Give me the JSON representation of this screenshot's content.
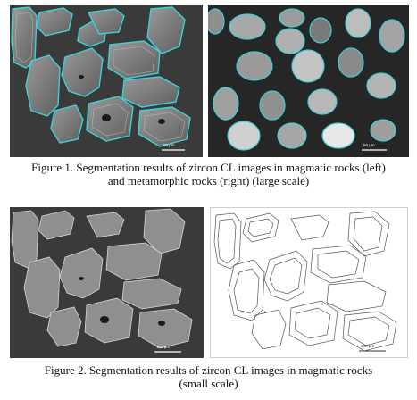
{
  "figure1": {
    "caption_line1": "Figure 1. Segmentation results of zircon CL images in magmatic rocks (left)",
    "caption_line2": "and metamorphic rocks (right) (large scale)",
    "left_scale_label": "50 μm",
    "right_scale_label": "50 μm"
  },
  "figure2": {
    "caption_line1": "Figure 2. Segmentation results of zircon CL images in magmatic rocks",
    "caption_line2": "(small scale)",
    "left_scale_label": "100 μm",
    "right_scale_label": "100 μm"
  },
  "colors": {
    "segment_outline": "#3fd0d8",
    "background_dark": "#3a3a3a",
    "background_darker": "#262626",
    "sketch_line": "#555555"
  }
}
